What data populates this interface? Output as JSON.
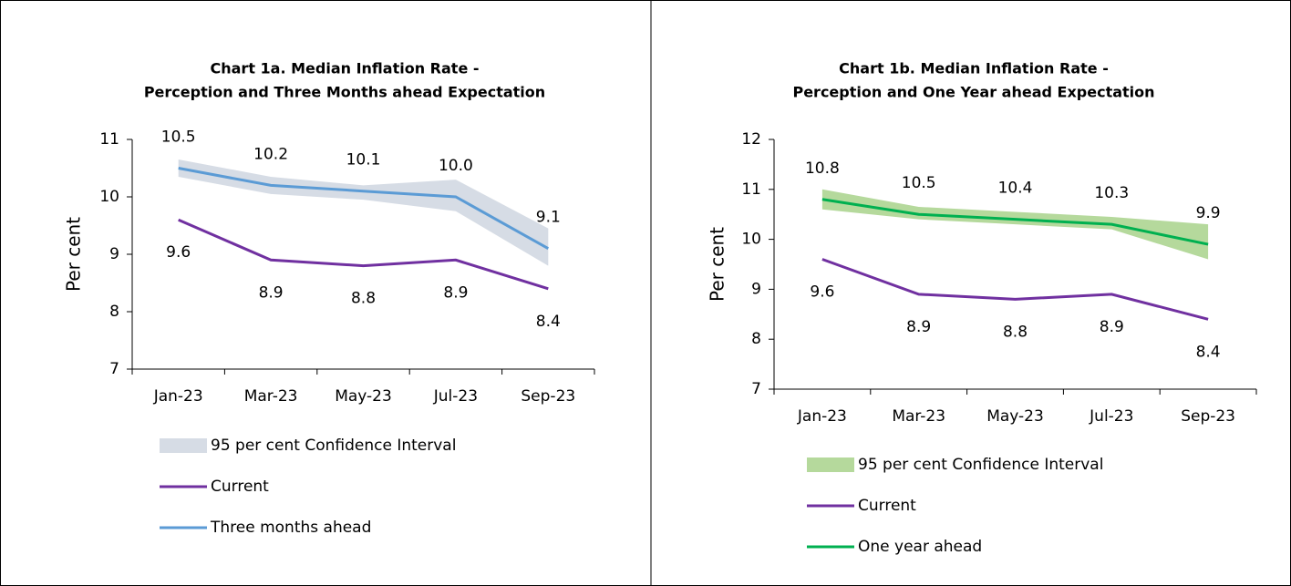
{
  "chart_data": [
    {
      "type": "line",
      "title": [
        "Chart 1a. Median Inflation Rate -",
        "Perception and Three Months ahead Expectation"
      ],
      "y_label": "Per cent",
      "categories": [
        "Jan-23",
        "Mar-23",
        "May-23",
        "Jul-23",
        "Sep-23"
      ],
      "ylim": [
        7,
        11
      ],
      "yticks": [
        7,
        8,
        9,
        10,
        11
      ],
      "legend": "bottom",
      "band": {
        "name": "95 per cent Confidence Interval",
        "color": "#d6dce5",
        "lower": [
          10.35,
          10.05,
          9.95,
          9.75,
          8.8
        ],
        "upper": [
          10.65,
          10.35,
          10.2,
          10.3,
          9.45
        ]
      },
      "series": [
        {
          "name": "Current",
          "color": "#7030a0",
          "values": [
            9.6,
            8.9,
            8.8,
            8.9,
            8.4
          ],
          "value_labels": [
            "9.6",
            "8.9",
            "8.8",
            "8.9",
            "8.4"
          ],
          "label_side": "below"
        },
        {
          "name": "Three months ahead",
          "color": "#5b9bd5",
          "values": [
            10.5,
            10.2,
            10.1,
            10.0,
            9.1
          ],
          "value_labels": [
            "10.5",
            "10.2",
            "10.1",
            "10.0",
            "9.1"
          ],
          "label_side": "above"
        }
      ]
    },
    {
      "type": "line",
      "title": [
        "Chart 1b. Median Inflation Rate -",
        "Perception and One Year ahead Expectation"
      ],
      "y_label": "Per cent",
      "categories": [
        "Jan-23",
        "Mar-23",
        "May-23",
        "Jul-23",
        "Sep-23"
      ],
      "ylim": [
        7,
        12
      ],
      "yticks": [
        7,
        8,
        9,
        10,
        11,
        12
      ],
      "legend": "bottom",
      "band": {
        "name": "95 per cent Confidence Interval",
        "color": "#b5d99c",
        "lower": [
          10.6,
          10.4,
          10.3,
          10.2,
          9.6
        ],
        "upper": [
          11.0,
          10.65,
          10.55,
          10.45,
          10.3
        ]
      },
      "series": [
        {
          "name": "Current",
          "color": "#7030a0",
          "values": [
            9.6,
            8.9,
            8.8,
            8.9,
            8.4
          ],
          "value_labels": [
            "9.6",
            "8.9",
            "8.8",
            "8.9",
            "8.4"
          ],
          "label_side": "below"
        },
        {
          "name": "One year ahead",
          "color": "#00b050",
          "values": [
            10.8,
            10.5,
            10.4,
            10.3,
            9.9
          ],
          "value_labels": [
            "10.8",
            "10.5",
            "10.4",
            "10.3",
            "9.9"
          ],
          "label_side": "above"
        }
      ]
    }
  ]
}
